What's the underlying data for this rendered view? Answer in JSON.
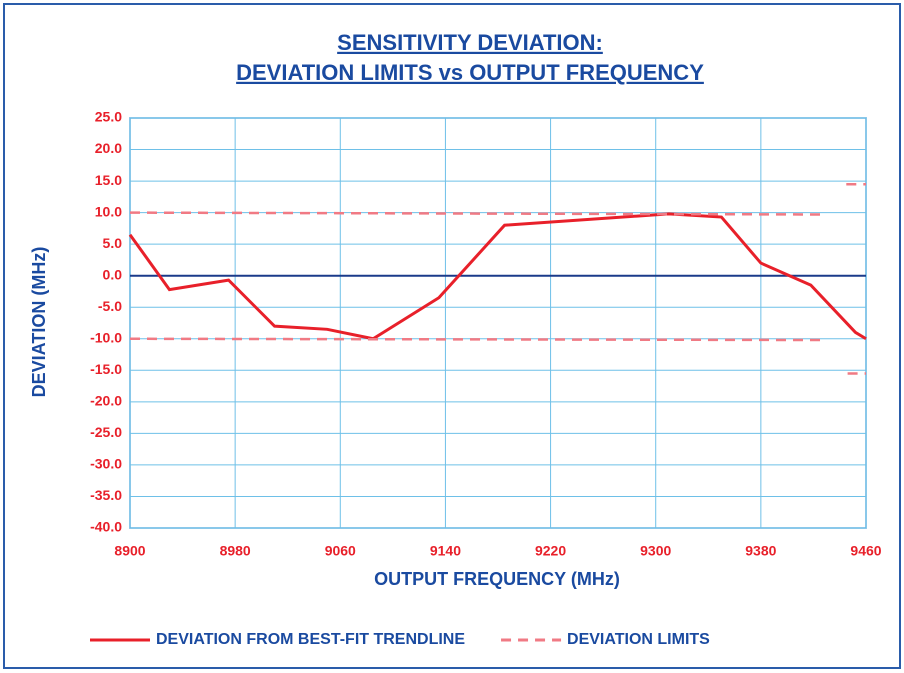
{
  "chart_data": {
    "type": "line",
    "title": [
      "SENSITIVITY DEVIATION:",
      "DEVIATION LIMITS vs OUTPUT FREQUENCY"
    ],
    "xlabel": "OUTPUT FREQUENCY (MHz)",
    "ylabel": "DEVIATION (MHz)",
    "xlim": [
      8900,
      9460
    ],
    "xticks": [
      8900,
      8980,
      9060,
      9140,
      9220,
      9300,
      9380,
      9460
    ],
    "ylim": [
      -40,
      25
    ],
    "yticks": [
      {
        "value": 25,
        "label": "25.0"
      },
      {
        "value": 20,
        "label": "20.0"
      },
      {
        "value": 15,
        "label": "15.0"
      },
      {
        "value": 10,
        "label": "10.0"
      },
      {
        "value": 5,
        "label": "5.0"
      },
      {
        "value": 0,
        "label": "0.0"
      },
      {
        "value": -5,
        "label": "-5.0"
      },
      {
        "value": -10,
        "label": "-10.0"
      },
      {
        "value": -15,
        "label": "-15.0"
      },
      {
        "value": -20,
        "label": "-20.0"
      },
      {
        "value": -25,
        "label": "-25.0"
      },
      {
        "value": -30,
        "label": "-30.0"
      },
      {
        "value": -35,
        "label": "-35.0"
      },
      {
        "value": -40,
        "label": "-40.0"
      }
    ],
    "grid": true,
    "series": [
      {
        "name": "DEVIATION FROM BEST-FIT TRENDLINE",
        "color": "#e8202a",
        "dash": false,
        "x": [
          8900,
          8930,
          8975,
          9010,
          9050,
          9085,
          9135,
          9185,
          9310,
          9350,
          9380,
          9418,
          9452,
          9460
        ],
        "values": [
          6.5,
          -2.2,
          -0.7,
          -8,
          -8.5,
          -10,
          -3.5,
          8,
          9.8,
          9.3,
          2,
          -1.5,
          -9,
          -10
        ]
      },
      {
        "name": "DEVIATION LIMITS",
        "color": "#f07a84",
        "dash": true,
        "x": [
          8900,
          9430,
          9440,
          9445,
          9460
        ],
        "values": [
          10,
          9.7,
          null,
          14.5,
          14.5
        ]
      },
      {
        "color": "#f07a84",
        "dash": true,
        "x": [
          8900,
          9430,
          9440,
          9446,
          9460
        ],
        "values": [
          -10,
          -10.2,
          null,
          -15.5,
          -15.5
        ]
      }
    ]
  }
}
